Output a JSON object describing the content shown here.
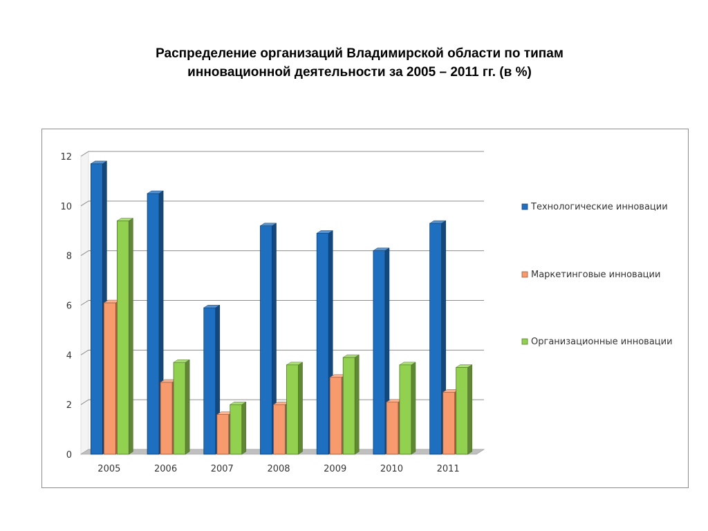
{
  "title": {
    "line1": "Распределение организаций Владимирской области по типам",
    "line2": "инновационной деятельности за 2005 – 2011 гг. (в %)"
  },
  "chart_data": {
    "type": "bar",
    "categories": [
      "2005",
      "2006",
      "2007",
      "2008",
      "2009",
      "2010",
      "2011"
    ],
    "series": [
      {
        "name": "Технологические инновации",
        "values": [
          11.7,
          10.5,
          5.9,
          9.2,
          8.9,
          8.2,
          9.3
        ],
        "color": "#1f6fc1"
      },
      {
        "name": "Маркетинговые инновации",
        "values": [
          6.1,
          2.9,
          1.6,
          2.0,
          3.1,
          2.1,
          2.5
        ],
        "color": "#f79a6d"
      },
      {
        "name": "Организационные инновации",
        "values": [
          9.4,
          3.7,
          2.0,
          3.6,
          3.9,
          3.6,
          3.5
        ],
        "color": "#92d050"
      }
    ],
    "ylim": [
      0,
      12
    ],
    "yticks": [
      "0",
      "2",
      "4",
      "6",
      "8",
      "10",
      "12"
    ],
    "grid": true,
    "legend_position": "right"
  }
}
